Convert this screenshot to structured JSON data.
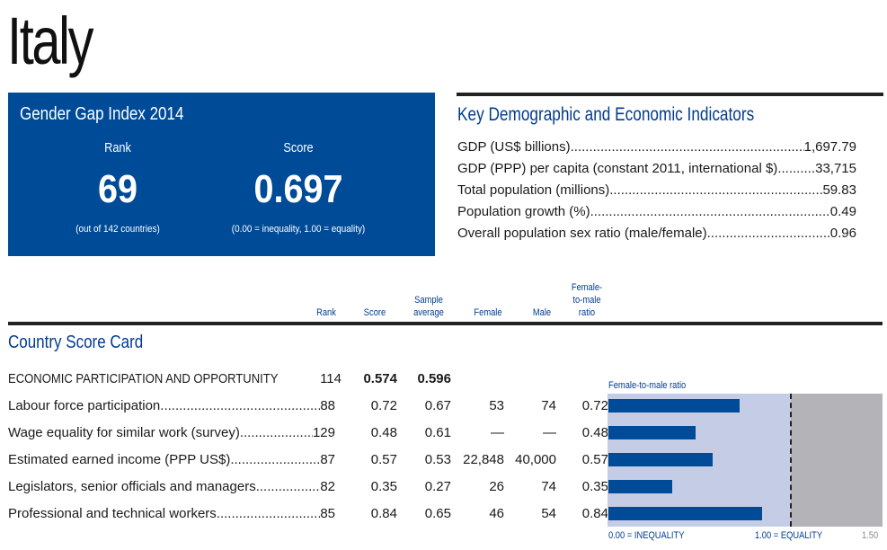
{
  "country": "Italy",
  "ggi": {
    "title": "Gender Gap Index 2014",
    "rank_label": "Rank",
    "rank_value": "69",
    "rank_note": "(out of 142 countries)",
    "score_label": "Score",
    "score_value": "0.697",
    "score_note": "(0.00 = inequality, 1.00 = equality)"
  },
  "key_indicators": {
    "title": "Key Demographic and Economic Indicators",
    "rows": [
      {
        "label": "GDP (US$ billions)",
        "value": "1,697.79"
      },
      {
        "label": "GDP (PPP) per capita (constant 2011, international $)",
        "value": "33,715"
      },
      {
        "label": "Total population (millions)",
        "value": "59.83"
      },
      {
        "label": "Population growth (%)",
        "value": "0.49"
      },
      {
        "label": "Overall population sex ratio (male/female)",
        "value": "0.96"
      }
    ]
  },
  "scorecard": {
    "title": "Country Score Card",
    "headers": {
      "rank": "Rank",
      "score": "Score",
      "sample_average_1": "Sample",
      "sample_average_2": "average",
      "female": "Female",
      "male": "Male",
      "ratio_1": "Female-",
      "ratio_2": "to-male",
      "ratio_3": "ratio"
    },
    "section": {
      "label": "ECONOMIC PARTICIPATION AND OPPORTUNITY",
      "rank": "114",
      "score": "0.574",
      "avg": "0.596"
    },
    "rows": [
      {
        "label": "Labour force participation",
        "rank": "88",
        "score": "0.72",
        "avg": "0.67",
        "female": "53",
        "male": "74",
        "ratio": "0.72"
      },
      {
        "label": "Wage equality for similar work (survey)",
        "rank": "129",
        "score": "0.48",
        "avg": "0.61",
        "female": "—",
        "male": "—",
        "ratio": "0.48"
      },
      {
        "label": "Estimated earned income (PPP US$)",
        "rank": "87",
        "score": "0.57",
        "avg": "0.53",
        "female": "22,848",
        "male": "40,000",
        "ratio": "0.57"
      },
      {
        "label": "Legislators, senior officials and managers",
        "rank": "82",
        "score": "0.35",
        "avg": "0.27",
        "female": "26",
        "male": "74",
        "ratio": "0.35"
      },
      {
        "label": "Professional and technical workers",
        "rank": "85",
        "score": "0.84",
        "avg": "0.65",
        "female": "46",
        "male": "54",
        "ratio": "0.84"
      }
    ]
  },
  "chart_data": {
    "type": "bar",
    "orientation": "horizontal",
    "title": "Female-to-male ratio",
    "categories": [
      "Labour force participation",
      "Wage equality for similar work (survey)",
      "Estimated earned income (PPP US$)",
      "Legislators, senior officials and managers",
      "Professional and technical workers"
    ],
    "values": [
      0.72,
      0.48,
      0.57,
      0.35,
      0.84
    ],
    "xlim": [
      0,
      1.5
    ],
    "reference_line": 1.0,
    "axis_labels": {
      "min": "0.00 = INEQUALITY",
      "mid": "1.00 = EQUALITY",
      "max": "1.50"
    },
    "colors": {
      "bar": "#004b97",
      "below_equality": "#c5cde6",
      "above_equality": "#b4b3b8"
    }
  }
}
